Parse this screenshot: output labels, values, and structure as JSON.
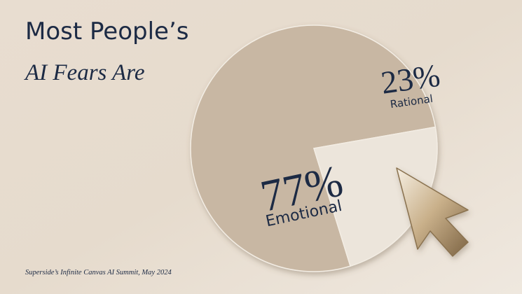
{
  "chart_data": {
    "type": "pie",
    "title": "Most People’s",
    "subtitle": "AI Fears Are",
    "categories": [
      "Emotional",
      "Rational"
    ],
    "values": [
      77,
      23
    ],
    "value_labels": [
      "77%",
      "23%"
    ],
    "colors": [
      "#c8b7a3",
      "#ece5db"
    ],
    "start_angle": 162.8,
    "source": "Superside’s Infinite Canvas AI Summit, May 2024"
  }
}
